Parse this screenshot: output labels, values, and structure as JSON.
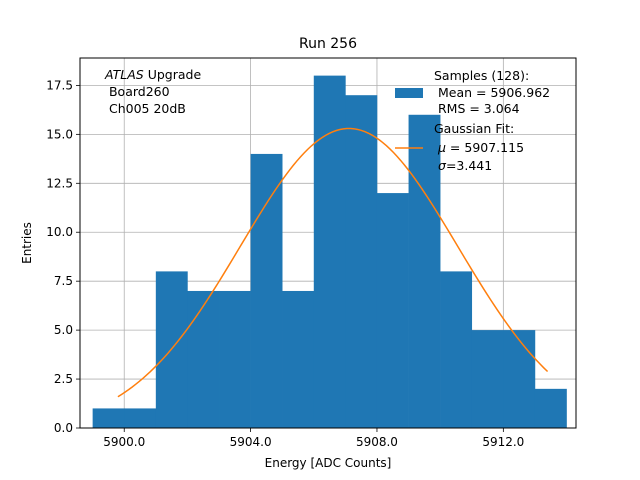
{
  "chart_data": {
    "type": "bar",
    "title": "Run 256",
    "xlabel": "Energy [ADC Counts]",
    "ylabel": "Entries",
    "xlim": [
      5898.6,
      5914.3
    ],
    "ylim": [
      0,
      18.9
    ],
    "grid": true,
    "xticks": [
      5900.0,
      5904.0,
      5908.0,
      5912.0
    ],
    "xtick_labels": [
      "5900.0",
      "5904.0",
      "5908.0",
      "5912.0"
    ],
    "yticks": [
      0,
      2.5,
      5.0,
      7.5,
      10.0,
      12.5,
      15.0,
      17.5
    ],
    "ytick_labels": [
      "0.0",
      "2.5",
      "5.0",
      "7.5",
      "10.0",
      "12.5",
      "15.0",
      "17.5"
    ],
    "histogram": {
      "name": "Samples (128):",
      "color": "#1f77b4",
      "bin_edges": [
        5899.0,
        5900.0,
        5901.0,
        5902.0,
        5903.0,
        5904.0,
        5905.0,
        5906.0,
        5907.0,
        5908.0,
        5909.0,
        5910.0,
        5911.0,
        5912.0,
        5913.0,
        5914.0
      ],
      "counts": [
        1,
        1,
        8,
        7,
        7,
        14,
        7,
        18,
        17,
        12,
        16,
        8,
        5,
        5,
        2
      ]
    },
    "fit": {
      "name": "Gaussian Fit:",
      "color": "#ff7f0e",
      "mu": 5907.115,
      "sigma": 3.441,
      "amplitude": 15.3,
      "x_range": [
        5899.8,
        5913.4
      ]
    },
    "annotation": {
      "italic": "ATLAS",
      "line1_rest": " Upgrade",
      "line2": " Board260",
      "line3": " Ch005 20dB"
    },
    "legend": {
      "position": "top-right",
      "hist_title": "Samples (128):",
      "hist_mean": " Mean = 5906.962",
      "hist_rms": " RMS = 3.064",
      "fit_title": "Gaussian Fit:",
      "fit_mu": "$\\mu$ = 5907.115",
      "fit_mu_sym": "μ",
      "fit_mu_rest": " = 5907.115",
      "fit_sigma": "$\\sigma$=3.441",
      "fit_sigma_sym": "σ",
      "fit_sigma_rest": "=3.441"
    }
  }
}
